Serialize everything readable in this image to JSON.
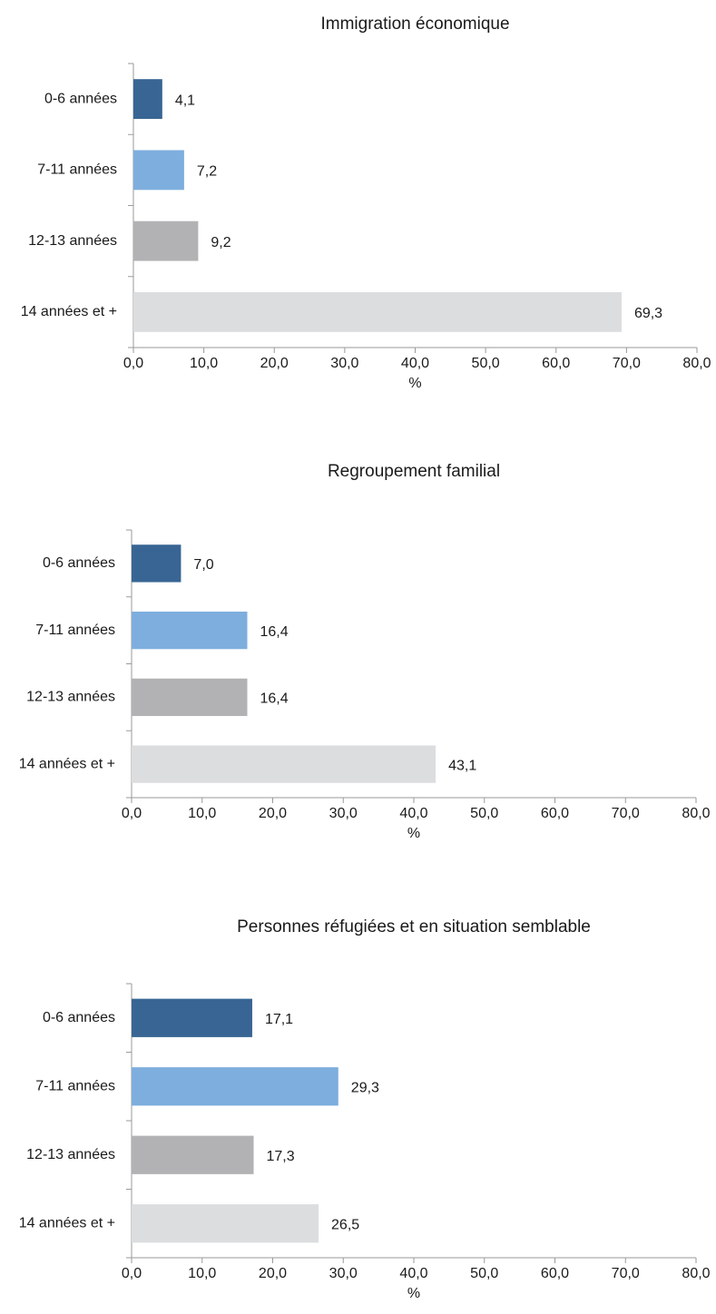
{
  "chart_data": [
    {
      "type": "bar",
      "orientation": "horizontal",
      "title": "Immigration économique",
      "categories": [
        "0-6 années",
        "7-11 années",
        "12-13 années",
        "14 années et +"
      ],
      "values": [
        4.1,
        7.2,
        9.2,
        69.3
      ],
      "value_labels": [
        "4,1",
        "7,2",
        "9,2",
        "69,3"
      ],
      "xlabel": "%",
      "ylabel": "",
      "xlim": [
        0,
        80
      ],
      "xticks": [
        "0,0",
        "10,0",
        "20,0",
        "30,0",
        "40,0",
        "50,0",
        "60,0",
        "70,0",
        "80,0"
      ],
      "colors": [
        "#386593",
        "#7eaedd",
        "#b2b2b4",
        "#dcdddf"
      ],
      "grid": false
    },
    {
      "type": "bar",
      "orientation": "horizontal",
      "title": "Regroupement familial",
      "categories": [
        "0-6 années",
        "7-11 années",
        "12-13 années",
        "14 années et +"
      ],
      "values": [
        7.0,
        16.4,
        16.4,
        43.1
      ],
      "value_labels": [
        "7,0",
        "16,4",
        "16,4",
        "43,1"
      ],
      "xlabel": "%",
      "ylabel": "",
      "xlim": [
        0,
        80
      ],
      "xticks": [
        "0,0",
        "10,0",
        "20,0",
        "30,0",
        "40,0",
        "50,0",
        "60,0",
        "70,0",
        "80,0"
      ],
      "colors": [
        "#386593",
        "#7eaedd",
        "#b2b2b4",
        "#dcdddf"
      ],
      "grid": false
    },
    {
      "type": "bar",
      "orientation": "horizontal",
      "title": "Personnes réfugiées et en situation semblable",
      "categories": [
        "0-6 années",
        "7-11 années",
        "12-13 années",
        "14 années et +"
      ],
      "values": [
        17.1,
        29.3,
        17.3,
        26.5
      ],
      "value_labels": [
        "17,1",
        "29,3",
        "17,3",
        "26,5"
      ],
      "xlabel": "%",
      "ylabel": "",
      "xlim": [
        0,
        80
      ],
      "xticks": [
        "0,0",
        "10,0",
        "20,0",
        "30,0",
        "40,0",
        "50,0",
        "60,0",
        "70,0",
        "80,0"
      ],
      "colors": [
        "#386593",
        "#7eaedd",
        "#b2b2b4",
        "#dcdddf"
      ],
      "grid": false
    }
  ]
}
